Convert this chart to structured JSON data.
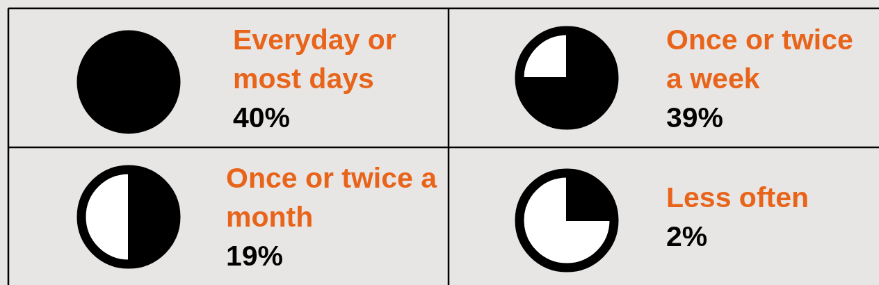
{
  "chart_data": {
    "type": "other",
    "categories": [
      "Everyday or most days",
      "Once or twice a week",
      "Once or twice a month",
      "Less often"
    ],
    "values": [
      40,
      39,
      19,
      2
    ],
    "value_labels": [
      "40%",
      "39%",
      "19%",
      "2%"
    ]
  }
}
